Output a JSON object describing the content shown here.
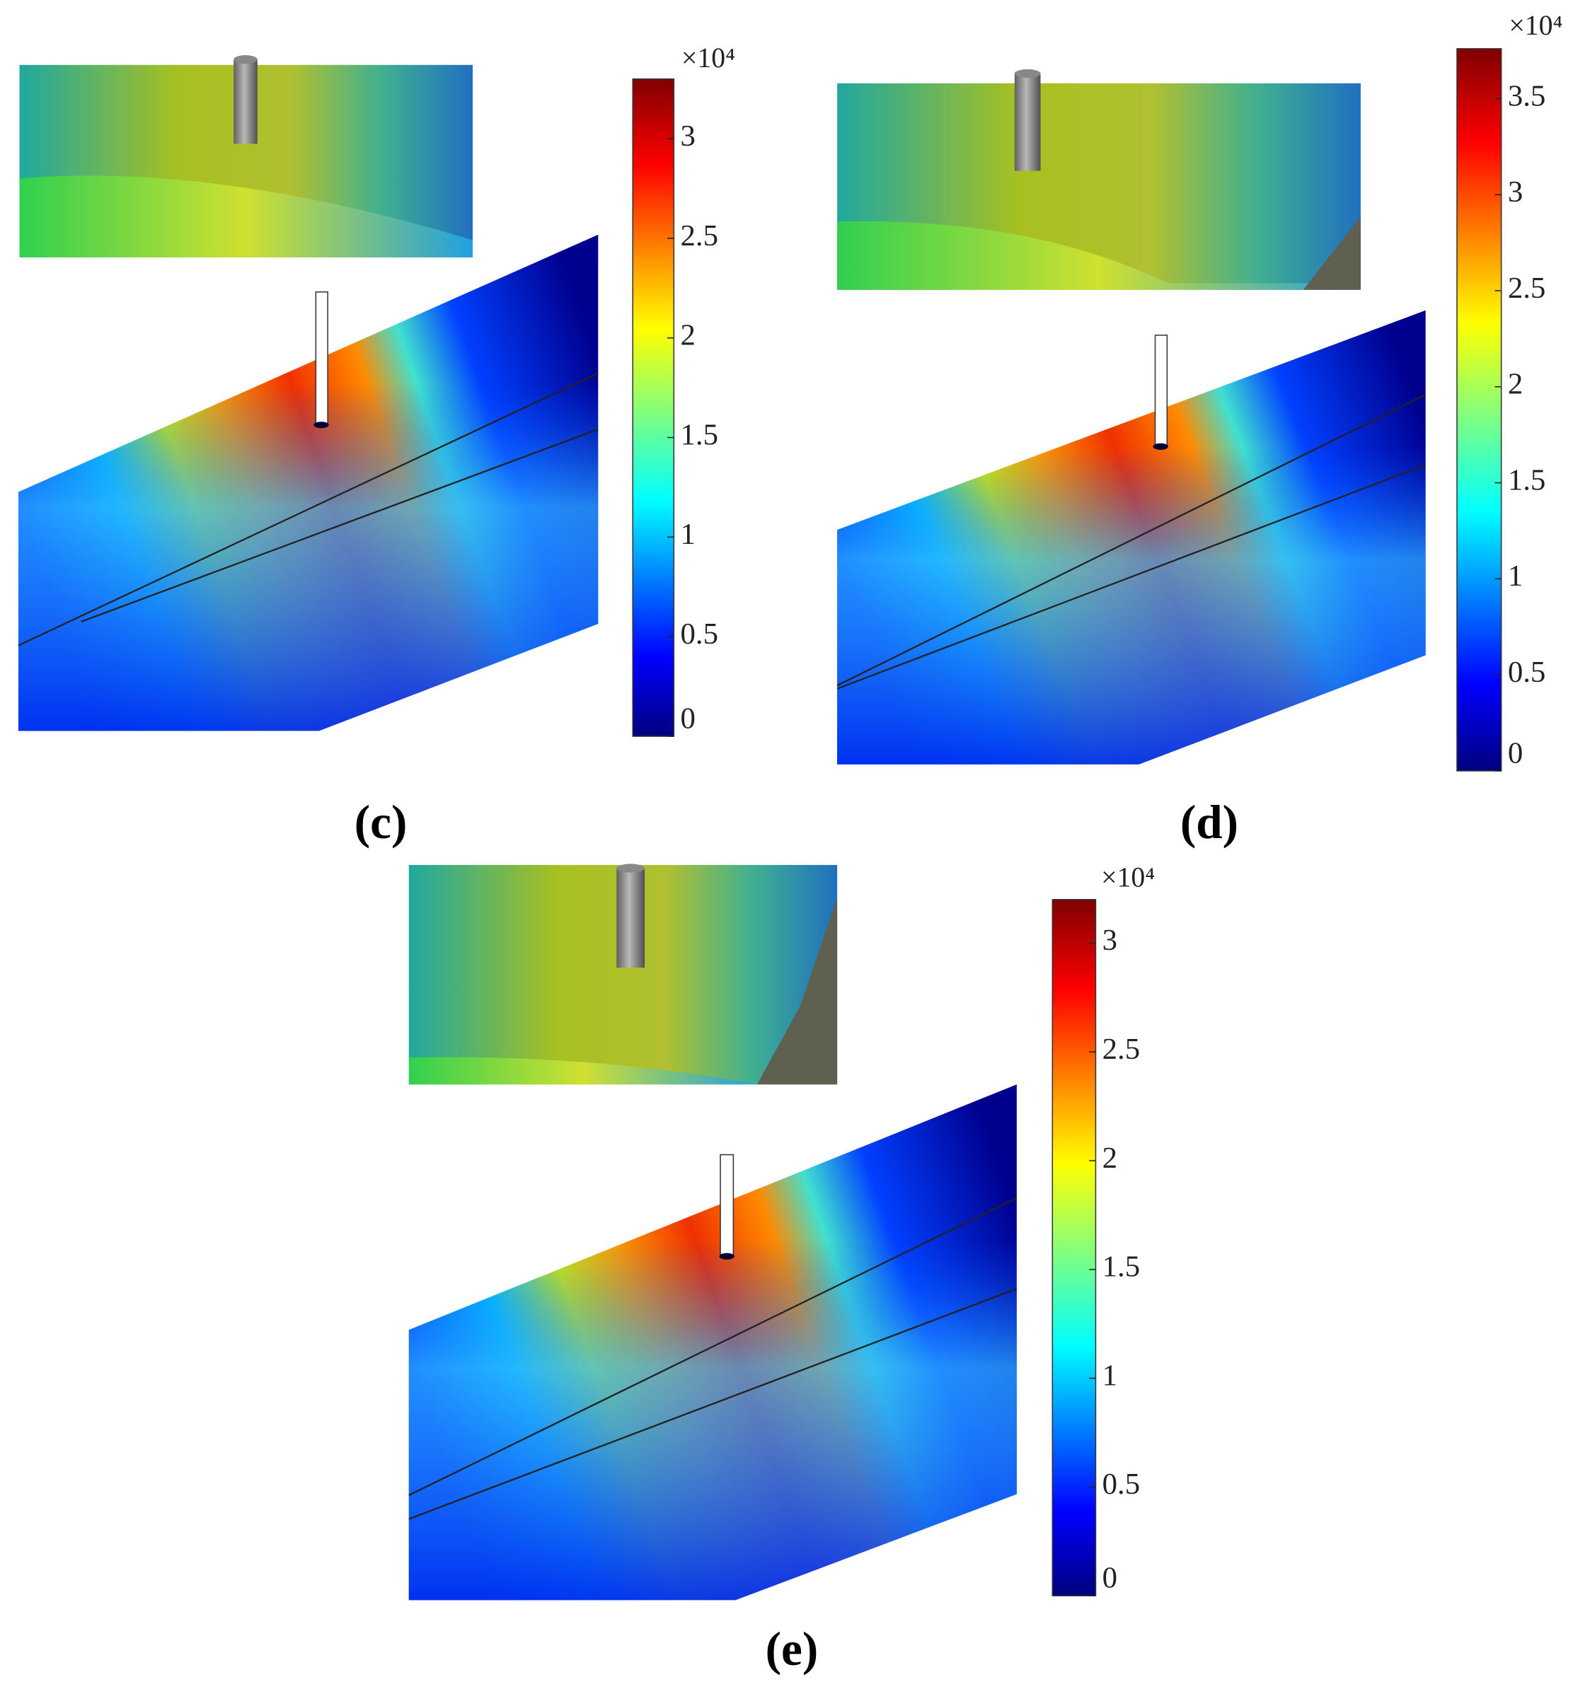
{
  "panels": [
    {
      "label": "(c)",
      "colorbar": {
        "multiplier": "×10⁴",
        "lim": [
          0,
          3.3
        ],
        "ticks": [
          0,
          0.5,
          1,
          1.5,
          2,
          2.5,
          3
        ]
      }
    },
    {
      "label": "(d)",
      "colorbar": {
        "multiplier": "×10⁴",
        "lim": [
          0,
          3.76
        ],
        "ticks": [
          0,
          0.5,
          1,
          1.5,
          2,
          2.5,
          3,
          3.5
        ]
      }
    },
    {
      "label": "(e)",
      "colorbar": {
        "multiplier": "×10⁴",
        "lim": [
          0,
          3.2
        ],
        "ticks": [
          0,
          0.5,
          1,
          1.5,
          2,
          2.5,
          3
        ]
      }
    }
  ]
}
